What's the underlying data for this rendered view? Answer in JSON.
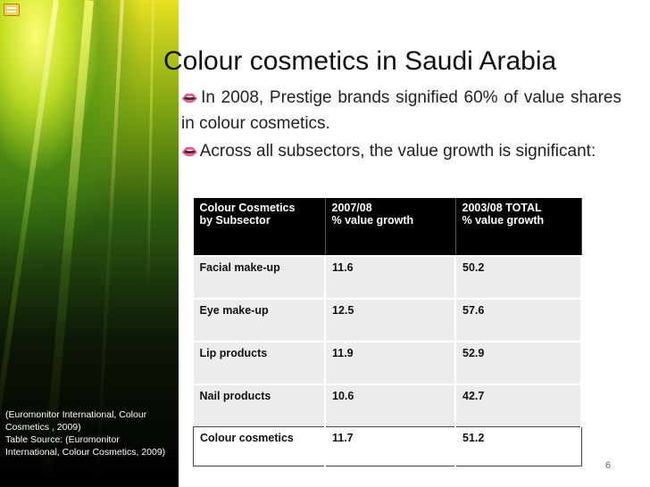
{
  "slide": {
    "title": "Colour cosmetics in Saudi Arabia",
    "bullets": [
      "In 2008, Prestige brands signified 60% of value shares in colour cosmetics.",
      "Across all subsectors, the value growth is significant:"
    ],
    "bullet_icon": "lips-icon",
    "page_number": "6"
  },
  "table": {
    "headers": [
      [
        "Colour Cosmetics",
        "by Subsector"
      ],
      [
        "2007/08",
        "%  value growth"
      ],
      [
        "2003/08 TOTAL",
        "% value growth"
      ]
    ],
    "rows": [
      [
        "Facial make-up",
        "11.6",
        "50.2"
      ],
      [
        "Eye make-up",
        "12.5",
        "57.6"
      ],
      [
        "Lip products",
        "11.9",
        "52.9"
      ],
      [
        "Nail products",
        "10.6",
        "42.7"
      ],
      [
        "Colour cosmetics",
        "11.7",
        "51.2"
      ]
    ]
  },
  "source_note": [
    "(Euromonitor International, Colour",
    "Cosmetics , 2009)",
    "Table Source: (Euromonitor",
    "International, Colour Cosmetics, 2009)"
  ],
  "colors": {
    "header_bg": "#000000",
    "row_bg": "#ececec",
    "bullet_icon": "#c0392b"
  }
}
